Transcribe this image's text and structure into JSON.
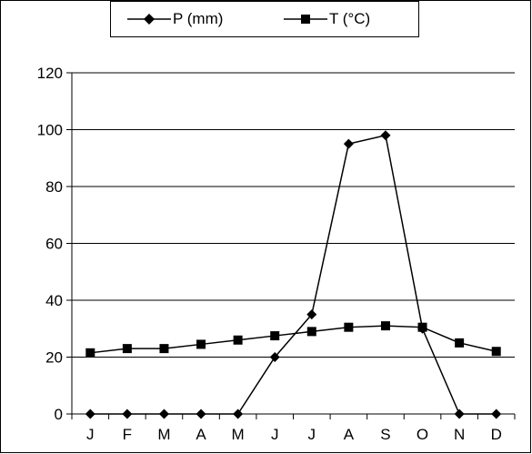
{
  "chart_data": {
    "type": "line",
    "categories": [
      "J",
      "F",
      "M",
      "A",
      "M",
      "J",
      "J",
      "A",
      "S",
      "O",
      "N",
      "D"
    ],
    "series": [
      {
        "name": "P (mm)",
        "marker": "diamond",
        "color": "#000000",
        "values": [
          0,
          0,
          0,
          0,
          0,
          20,
          35,
          95,
          98,
          30,
          0,
          0
        ]
      },
      {
        "name": "T (°C)",
        "marker": "square",
        "color": "#000000",
        "values": [
          21.5,
          23,
          23,
          24.5,
          26,
          27.5,
          29,
          30.5,
          31,
          30.5,
          25,
          22
        ]
      }
    ],
    "ylim": [
      0,
      120
    ],
    "yticks": [
      "0",
      "20",
      "40",
      "60",
      "80",
      "100",
      "120"
    ],
    "grid": true,
    "legend_position": "top"
  }
}
